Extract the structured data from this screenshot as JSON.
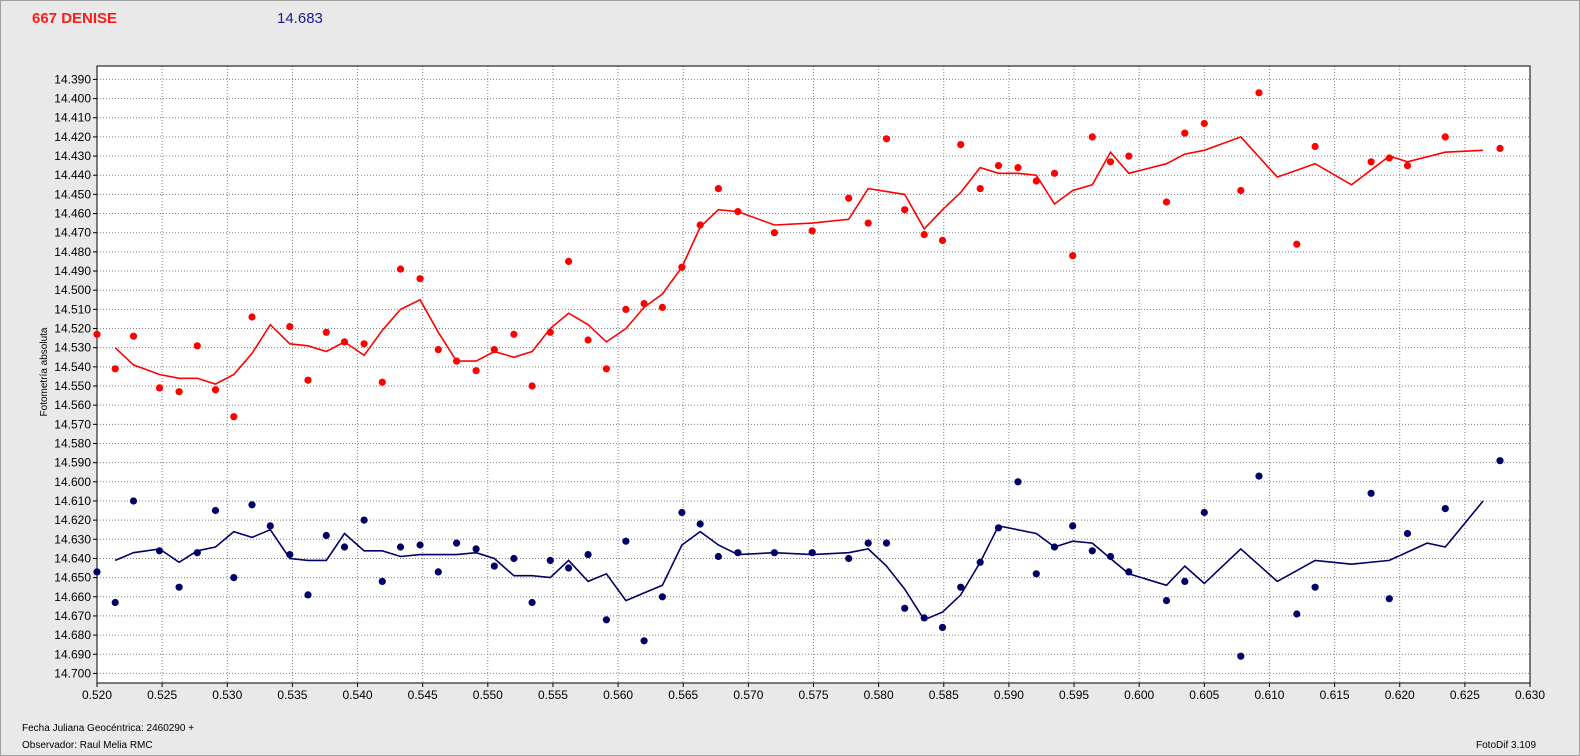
{
  "header": {
    "object_name": "667 DENISE",
    "reference_mag": "14.683",
    "object_color": "#ff1a1a",
    "mag_color": "#1a1a8c"
  },
  "footer": {
    "date_label": "Fecha Juliana Geocéntrica: 2460290 +",
    "observer_label": "Observador: Raul Melia RMC",
    "software_label": "FotoDif 3.109"
  },
  "colors": {
    "series_a": "#ff0000",
    "series_b": "#000066",
    "grid": "#808080"
  },
  "chart_data": {
    "type": "scatter",
    "title": "",
    "xlabel": "",
    "ylabel": "Fotometría absoluta",
    "xlim": [
      0.52,
      0.63
    ],
    "ylim": [
      14.705,
      14.383
    ],
    "y_inverted": true,
    "grid": true,
    "x_ticks": [
      "0.520",
      "0.525",
      "0.530",
      "0.535",
      "0.540",
      "0.545",
      "0.550",
      "0.555",
      "0.560",
      "0.565",
      "0.570",
      "0.575",
      "0.580",
      "0.585",
      "0.590",
      "0.595",
      "0.600",
      "0.605",
      "0.610",
      "0.615",
      "0.620",
      "0.625",
      "0.630"
    ],
    "y_ticks": [
      "14.390",
      "14.400",
      "14.410",
      "14.420",
      "14.430",
      "14.440",
      "14.450",
      "14.460",
      "14.470",
      "14.480",
      "14.490",
      "14.500",
      "14.510",
      "14.520",
      "14.530",
      "14.540",
      "14.550",
      "14.560",
      "14.570",
      "14.580",
      "14.590",
      "14.600",
      "14.610",
      "14.620",
      "14.630",
      "14.640",
      "14.650",
      "14.660",
      "14.670",
      "14.680",
      "14.690",
      "14.700"
    ],
    "series": [
      {
        "color": "#ff0000",
        "points": [
          [
            0.52,
            14.523
          ],
          [
            0.5214,
            14.541
          ],
          [
            0.5228,
            14.524
          ],
          [
            0.5248,
            14.551
          ],
          [
            0.5263,
            14.553
          ],
          [
            0.5277,
            14.529
          ],
          [
            0.5291,
            14.552
          ],
          [
            0.5305,
            14.566
          ],
          [
            0.5319,
            14.514
          ],
          [
            0.5348,
            14.519
          ],
          [
            0.5362,
            14.547
          ],
          [
            0.5376,
            14.522
          ],
          [
            0.539,
            14.527
          ],
          [
            0.5405,
            14.528
          ],
          [
            0.5419,
            14.548
          ],
          [
            0.5433,
            14.489
          ],
          [
            0.5448,
            14.494
          ],
          [
            0.5462,
            14.531
          ],
          [
            0.5476,
            14.537
          ],
          [
            0.5491,
            14.542
          ],
          [
            0.5505,
            14.531
          ],
          [
            0.552,
            14.523
          ],
          [
            0.5534,
            14.55
          ],
          [
            0.5548,
            14.522
          ],
          [
            0.5562,
            14.485
          ],
          [
            0.5577,
            14.526
          ],
          [
            0.5591,
            14.541
          ],
          [
            0.5606,
            14.51
          ],
          [
            0.562,
            14.507
          ],
          [
            0.5634,
            14.509
          ],
          [
            0.5649,
            14.488
          ],
          [
            0.5663,
            14.466
          ],
          [
            0.5677,
            14.447
          ],
          [
            0.5692,
            14.459
          ],
          [
            0.572,
            14.47
          ],
          [
            0.5749,
            14.469
          ],
          [
            0.5777,
            14.452
          ],
          [
            0.5792,
            14.465
          ],
          [
            0.5806,
            14.421
          ],
          [
            0.582,
            14.458
          ],
          [
            0.5835,
            14.471
          ],
          [
            0.5849,
            14.474
          ],
          [
            0.5863,
            14.424
          ],
          [
            0.5878,
            14.447
          ],
          [
            0.5892,
            14.435
          ],
          [
            0.5907,
            14.436
          ],
          [
            0.5921,
            14.443
          ],
          [
            0.5935,
            14.439
          ],
          [
            0.5949,
            14.482
          ],
          [
            0.5964,
            14.42
          ],
          [
            0.5978,
            14.433
          ],
          [
            0.5992,
            14.43
          ],
          [
            0.6021,
            14.454
          ],
          [
            0.6035,
            14.418
          ],
          [
            0.605,
            14.413
          ],
          [
            0.6078,
            14.448
          ],
          [
            0.6092,
            14.397
          ],
          [
            0.6121,
            14.476
          ],
          [
            0.6135,
            14.425
          ],
          [
            0.6178,
            14.433
          ],
          [
            0.6192,
            14.431
          ],
          [
            0.6206,
            14.435
          ],
          [
            0.6235,
            14.42
          ],
          [
            0.6277,
            14.426
          ]
        ],
        "line": [
          [
            0.5214,
            14.53
          ],
          [
            0.5228,
            14.539
          ],
          [
            0.5248,
            14.544
          ],
          [
            0.5263,
            14.546
          ],
          [
            0.5277,
            14.546
          ],
          [
            0.5291,
            14.549
          ],
          [
            0.5305,
            14.544
          ],
          [
            0.5319,
            14.533
          ],
          [
            0.5333,
            14.518
          ],
          [
            0.5348,
            14.528
          ],
          [
            0.5362,
            14.529
          ],
          [
            0.5376,
            14.532
          ],
          [
            0.539,
            14.527
          ],
          [
            0.5405,
            14.534
          ],
          [
            0.5419,
            14.521
          ],
          [
            0.5433,
            14.51
          ],
          [
            0.5448,
            14.505
          ],
          [
            0.5462,
            14.522
          ],
          [
            0.5476,
            14.537
          ],
          [
            0.5491,
            14.537
          ],
          [
            0.5505,
            14.532
          ],
          [
            0.552,
            14.535
          ],
          [
            0.5534,
            14.532
          ],
          [
            0.5548,
            14.52
          ],
          [
            0.5562,
            14.512
          ],
          [
            0.5577,
            14.518
          ],
          [
            0.5591,
            14.527
          ],
          [
            0.5606,
            14.52
          ],
          [
            0.562,
            14.509
          ],
          [
            0.5634,
            14.502
          ],
          [
            0.5649,
            14.488
          ],
          [
            0.5663,
            14.467
          ],
          [
            0.5677,
            14.458
          ],
          [
            0.5692,
            14.459
          ],
          [
            0.572,
            14.466
          ],
          [
            0.5749,
            14.465
          ],
          [
            0.5777,
            14.463
          ],
          [
            0.5792,
            14.447
          ],
          [
            0.582,
            14.45
          ],
          [
            0.5835,
            14.468
          ],
          [
            0.5849,
            14.458
          ],
          [
            0.5863,
            14.449
          ],
          [
            0.5878,
            14.436
          ],
          [
            0.5892,
            14.439
          ],
          [
            0.5907,
            14.439
          ],
          [
            0.5921,
            14.44
          ],
          [
            0.5935,
            14.455
          ],
          [
            0.5949,
            14.448
          ],
          [
            0.5964,
            14.445
          ],
          [
            0.5978,
            14.428
          ],
          [
            0.5992,
            14.439
          ],
          [
            0.6021,
            14.434
          ],
          [
            0.6035,
            14.429
          ],
          [
            0.605,
            14.427
          ],
          [
            0.6078,
            14.42
          ],
          [
            0.6106,
            14.441
          ],
          [
            0.6135,
            14.434
          ],
          [
            0.6163,
            14.445
          ],
          [
            0.6192,
            14.43
          ],
          [
            0.6206,
            14.433
          ],
          [
            0.6235,
            14.428
          ],
          [
            0.6264,
            14.427
          ]
        ]
      },
      {
        "color": "#000066",
        "points": [
          [
            0.52,
            14.647
          ],
          [
            0.5214,
            14.663
          ],
          [
            0.5228,
            14.61
          ],
          [
            0.5248,
            14.636
          ],
          [
            0.5263,
            14.655
          ],
          [
            0.5277,
            14.637
          ],
          [
            0.5291,
            14.615
          ],
          [
            0.5305,
            14.65
          ],
          [
            0.5319,
            14.612
          ],
          [
            0.5333,
            14.623
          ],
          [
            0.5348,
            14.638
          ],
          [
            0.5362,
            14.659
          ],
          [
            0.5376,
            14.628
          ],
          [
            0.539,
            14.634
          ],
          [
            0.5405,
            14.62
          ],
          [
            0.5419,
            14.652
          ],
          [
            0.5433,
            14.634
          ],
          [
            0.5448,
            14.633
          ],
          [
            0.5462,
            14.647
          ],
          [
            0.5476,
            14.632
          ],
          [
            0.5491,
            14.635
          ],
          [
            0.5505,
            14.644
          ],
          [
            0.552,
            14.64
          ],
          [
            0.5534,
            14.663
          ],
          [
            0.5548,
            14.641
          ],
          [
            0.5562,
            14.645
          ],
          [
            0.5577,
            14.638
          ],
          [
            0.5591,
            14.672
          ],
          [
            0.5606,
            14.631
          ],
          [
            0.562,
            14.683
          ],
          [
            0.5634,
            14.66
          ],
          [
            0.5649,
            14.616
          ],
          [
            0.5663,
            14.622
          ],
          [
            0.5677,
            14.639
          ],
          [
            0.5692,
            14.637
          ],
          [
            0.572,
            14.637
          ],
          [
            0.5749,
            14.637
          ],
          [
            0.5777,
            14.64
          ],
          [
            0.5792,
            14.632
          ],
          [
            0.5806,
            14.632
          ],
          [
            0.582,
            14.666
          ],
          [
            0.5835,
            14.671
          ],
          [
            0.5849,
            14.676
          ],
          [
            0.5863,
            14.655
          ],
          [
            0.5878,
            14.642
          ],
          [
            0.5892,
            14.624
          ],
          [
            0.5907,
            14.6
          ],
          [
            0.5921,
            14.648
          ],
          [
            0.5935,
            14.634
          ],
          [
            0.5949,
            14.623
          ],
          [
            0.5964,
            14.636
          ],
          [
            0.5978,
            14.639
          ],
          [
            0.5992,
            14.647
          ],
          [
            0.6021,
            14.662
          ],
          [
            0.6035,
            14.652
          ],
          [
            0.605,
            14.616
          ],
          [
            0.6078,
            14.691
          ],
          [
            0.6092,
            14.597
          ],
          [
            0.6121,
            14.669
          ],
          [
            0.6135,
            14.655
          ],
          [
            0.6178,
            14.606
          ],
          [
            0.6192,
            14.661
          ],
          [
            0.6206,
            14.627
          ],
          [
            0.6235,
            14.614
          ],
          [
            0.6277,
            14.589
          ]
        ],
        "line": [
          [
            0.5214,
            14.641
          ],
          [
            0.5228,
            14.637
          ],
          [
            0.5248,
            14.635
          ],
          [
            0.5263,
            14.642
          ],
          [
            0.5277,
            14.636
          ],
          [
            0.5291,
            14.634
          ],
          [
            0.5305,
            14.626
          ],
          [
            0.5319,
            14.629
          ],
          [
            0.5333,
            14.625
          ],
          [
            0.5348,
            14.64
          ],
          [
            0.5362,
            14.641
          ],
          [
            0.5376,
            14.641
          ],
          [
            0.539,
            14.627
          ],
          [
            0.5405,
            14.636
          ],
          [
            0.5419,
            14.636
          ],
          [
            0.5433,
            14.639
          ],
          [
            0.5448,
            14.638
          ],
          [
            0.5462,
            14.638
          ],
          [
            0.5476,
            14.638
          ],
          [
            0.5491,
            14.637
          ],
          [
            0.5505,
            14.64
          ],
          [
            0.552,
            14.649
          ],
          [
            0.5534,
            14.649
          ],
          [
            0.5548,
            14.65
          ],
          [
            0.5562,
            14.641
          ],
          [
            0.5577,
            14.652
          ],
          [
            0.5591,
            14.648
          ],
          [
            0.5606,
            14.662
          ],
          [
            0.5634,
            14.654
          ],
          [
            0.5649,
            14.633
          ],
          [
            0.5663,
            14.626
          ],
          [
            0.5677,
            14.633
          ],
          [
            0.5692,
            14.638
          ],
          [
            0.572,
            14.637
          ],
          [
            0.5749,
            14.638
          ],
          [
            0.5777,
            14.637
          ],
          [
            0.5792,
            14.635
          ],
          [
            0.5806,
            14.644
          ],
          [
            0.582,
            14.656
          ],
          [
            0.5835,
            14.672
          ],
          [
            0.5849,
            14.668
          ],
          [
            0.5863,
            14.659
          ],
          [
            0.5878,
            14.642
          ],
          [
            0.5892,
            14.623
          ],
          [
            0.5921,
            14.627
          ],
          [
            0.5935,
            14.634
          ],
          [
            0.5949,
            14.631
          ],
          [
            0.5964,
            14.632
          ],
          [
            0.5978,
            14.64
          ],
          [
            0.5992,
            14.648
          ],
          [
            0.6021,
            14.654
          ],
          [
            0.6035,
            14.644
          ],
          [
            0.605,
            14.653
          ],
          [
            0.6078,
            14.635
          ],
          [
            0.6106,
            14.652
          ],
          [
            0.6135,
            14.641
          ],
          [
            0.6163,
            14.643
          ],
          [
            0.6192,
            14.641
          ],
          [
            0.6221,
            14.632
          ],
          [
            0.6235,
            14.634
          ],
          [
            0.6264,
            14.61
          ]
        ]
      }
    ]
  }
}
